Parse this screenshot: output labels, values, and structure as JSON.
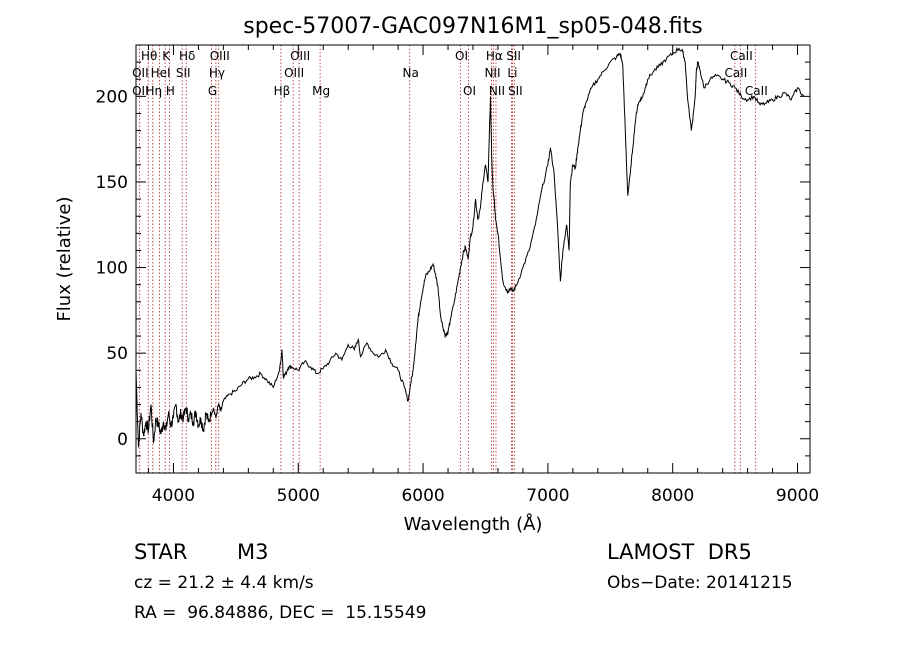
{
  "chart_data": {
    "type": "line",
    "title": "spec-57007-GAC097N16M1_sp05-048.fits",
    "xlabel": "Wavelength (Å)",
    "ylabel": "Flux (relative)",
    "xlim": [
      3700,
      9100
    ],
    "ylim": [
      -20,
      230
    ],
    "xticks": [
      4000,
      5000,
      6000,
      7000,
      8000,
      9000
    ],
    "yticks": [
      0,
      50,
      100,
      150,
      200
    ],
    "grid": false,
    "series": [
      {
        "x": [
          3700,
          3720,
          3740,
          3760,
          3780,
          3800,
          3820,
          3840,
          3860,
          3880,
          3900,
          3920,
          3940,
          3960,
          3980,
          4000,
          4020,
          4040,
          4060,
          4080,
          4100,
          4120,
          4140,
          4160,
          4180,
          4200,
          4220,
          4240,
          4260,
          4280,
          4300,
          4320,
          4340,
          4360,
          4380,
          4400,
          4450,
          4500,
          4550,
          4600,
          4650,
          4700,
          4750,
          4800,
          4850,
          4870,
          4880,
          4900,
          4920,
          4950,
          5000,
          5050,
          5100,
          5150,
          5200,
          5250,
          5300,
          5350,
          5400,
          5450,
          5480,
          5500,
          5550,
          5600,
          5650,
          5700,
          5750,
          5800,
          5850,
          5880,
          5900,
          5920,
          5940,
          5960,
          5980,
          6000,
          6020,
          6050,
          6080,
          6100,
          6120,
          6140,
          6160,
          6180,
          6200,
          6220,
          6250,
          6280,
          6300,
          6320,
          6340,
          6360,
          6380,
          6400,
          6420,
          6440,
          6460,
          6480,
          6500,
          6520,
          6540,
          6550,
          6560,
          6570,
          6580,
          6600,
          6620,
          6640,
          6660,
          6680,
          6700,
          6720,
          6750,
          6800,
          6850,
          6900,
          6950,
          7000,
          7020,
          7050,
          7080,
          7100,
          7120,
          7150,
          7170,
          7180,
          7200,
          7220,
          7240,
          7260,
          7280,
          7300,
          7350,
          7400,
          7450,
          7500,
          7550,
          7580,
          7600,
          7620,
          7640,
          7660,
          7680,
          7700,
          7720,
          7740,
          7760,
          7780,
          7800,
          7850,
          7900,
          7950,
          8000,
          8050,
          8080,
          8100,
          8120,
          8150,
          8180,
          8190,
          8200,
          8220,
          8250,
          8300,
          8350,
          8400,
          8450,
          8500,
          8550,
          8600,
          8650,
          8700,
          8750,
          8800,
          8850,
          8900,
          8950,
          9000,
          9050
        ],
        "y": [
          40,
          -5,
          15,
          2,
          10,
          5,
          20,
          -2,
          12,
          8,
          3,
          10,
          5,
          15,
          8,
          12,
          20,
          10,
          15,
          12,
          18,
          12,
          14,
          10,
          16,
          8,
          12,
          5,
          15,
          10,
          14,
          18,
          12,
          20,
          16,
          22,
          26,
          28,
          32,
          35,
          36,
          38,
          34,
          30,
          40,
          52,
          36,
          38,
          42,
          42,
          40,
          45,
          42,
          38,
          41,
          45,
          50,
          46,
          55,
          52,
          58,
          48,
          56,
          50,
          48,
          52,
          44,
          40,
          30,
          22,
          32,
          40,
          55,
          70,
          80,
          88,
          95,
          98,
          102,
          96,
          88,
          72,
          65,
          60,
          62,
          70,
          80,
          92,
          100,
          108,
          112,
          105,
          118,
          124,
          140,
          128,
          135,
          150,
          160,
          150,
          200,
          165,
          145,
          140,
          128,
          120,
          105,
          92,
          88,
          86,
          88,
          86,
          90,
          100,
          110,
          125,
          145,
          160,
          170,
          155,
          120,
          92,
          110,
          125,
          110,
          150,
          160,
          158,
          170,
          180,
          190,
          195,
          205,
          210,
          215,
          220,
          223,
          225,
          218,
          180,
          142,
          155,
          170,
          185,
          195,
          198,
          200,
          205,
          210,
          215,
          218,
          222,
          225,
          228,
          226,
          220,
          198,
          180,
          200,
          215,
          220,
          215,
          205,
          210,
          212,
          210,
          208,
          205,
          200,
          198,
          200,
          195,
          196,
          198,
          200,
          202,
          198,
          205,
          200
        ]
      }
    ],
    "spectral_lines": [
      {
        "label": "Hθ",
        "wavelength": 3798,
        "row": 1
      },
      {
        "label": "K",
        "wavelength": 3934,
        "row": 1
      },
      {
        "label": "Hδ",
        "wavelength": 4102,
        "row": 1
      },
      {
        "label": "OIII",
        "wavelength": 4363,
        "row": 1
      },
      {
        "label": "OIII",
        "wavelength": 5007,
        "row": 1
      },
      {
        "label": "OI",
        "wavelength": 6300,
        "row": 1
      },
      {
        "label": "Hα",
        "wavelength": 6563,
        "row": 1
      },
      {
        "label": "SII",
        "wavelength": 6717,
        "row": 1
      },
      {
        "label": "CaII",
        "wavelength": 8542,
        "row": 1
      },
      {
        "label": "OII",
        "wavelength": 3727,
        "row": 2
      },
      {
        "label": "HeI",
        "wavelength": 3889,
        "row": 2
      },
      {
        "label": "SII",
        "wavelength": 4070,
        "row": 2
      },
      {
        "label": "Hγ",
        "wavelength": 4340,
        "row": 2
      },
      {
        "label": "OIII",
        "wavelength": 4959,
        "row": 2
      },
      {
        "label": "NII",
        "wavelength": 6548,
        "row": 2
      },
      {
        "label": "Li",
        "wavelength": 6708,
        "row": 2
      },
      {
        "label": "CaII",
        "wavelength": 8498,
        "row": 2
      },
      {
        "label": "OII",
        "wavelength": 3727,
        "row": 3
      },
      {
        "label": "Hη",
        "wavelength": 3835,
        "row": 3
      },
      {
        "label": "H",
        "wavelength": 3968,
        "row": 3
      },
      {
        "label": "G",
        "wavelength": 4305,
        "row": 3
      },
      {
        "label": "Hβ",
        "wavelength": 4861,
        "row": 3
      },
      {
        "label": "Mg",
        "wavelength": 5175,
        "row": 3
      },
      {
        "label": "Na",
        "wavelength": 5893,
        "row": 2
      },
      {
        "label": "OI",
        "wavelength": 6364,
        "row": 3
      },
      {
        "label": "NII",
        "wavelength": 6584,
        "row": 3
      },
      {
        "label": "SII",
        "wavelength": 6731,
        "row": 3
      },
      {
        "label": "CaII",
        "wavelength": 8662,
        "row": 3
      }
    ],
    "marker_lines": [
      3727,
      3798,
      3835,
      3889,
      3934,
      3968,
      4070,
      4102,
      4305,
      4340,
      4363,
      4861,
      4959,
      5007,
      5175,
      5893,
      6300,
      6364,
      6548,
      6563,
      6584,
      6708,
      6717,
      6731,
      8498,
      8542,
      8662
    ]
  },
  "info": {
    "object_class": "STAR",
    "subclass": "M3",
    "survey": "LAMOST  DR5",
    "cz": "cz = 21.2 ± 4.4 km/s",
    "obs_date": "Obs−Date: 20141215",
    "coords": "RA =  96.84886, DEC =  15.15549"
  }
}
